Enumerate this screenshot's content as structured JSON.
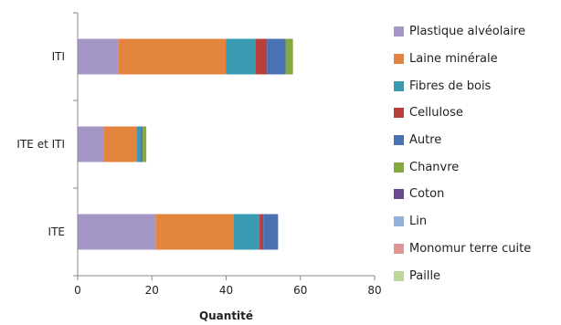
{
  "chart_data": {
    "type": "bar",
    "orientation": "horizontal",
    "stacked": true,
    "categories": [
      "ITI",
      "ITE et ITI",
      "ITE"
    ],
    "xlabel": "Quantité",
    "ylabel": "",
    "xlim": [
      0,
      80
    ],
    "xticks": [
      0,
      20,
      40,
      60,
      80
    ],
    "grid": false,
    "legend_position": "right",
    "series": [
      {
        "name": "Plastique alvéolaire",
        "color": "#A597C5",
        "values": [
          11,
          7,
          21
        ]
      },
      {
        "name": "Laine minérale",
        "color": "#E3843F",
        "values": [
          29,
          9,
          21
        ]
      },
      {
        "name": "Fibres de bois",
        "color": "#3A9AB1",
        "values": [
          8,
          1,
          7
        ]
      },
      {
        "name": "Cellulose",
        "color": "#B8403C",
        "values": [
          3,
          0,
          1
        ]
      },
      {
        "name": "Autre",
        "color": "#4A72B2",
        "values": [
          5,
          0.5,
          4
        ]
      },
      {
        "name": "Chanvre",
        "color": "#83A93F",
        "values": [
          2,
          1,
          0
        ]
      },
      {
        "name": "Coton",
        "color": "#6A4A8E",
        "values": [
          0,
          0,
          0
        ]
      },
      {
        "name": "Lin",
        "color": "#92B3D9",
        "values": [
          0,
          0,
          0
        ]
      },
      {
        "name": "Monomur terre cuite",
        "color": "#DE9593",
        "values": [
          0,
          0,
          0
        ]
      },
      {
        "name": "Paille",
        "color": "#BDD79B",
        "values": [
          0,
          0,
          0
        ]
      }
    ]
  }
}
